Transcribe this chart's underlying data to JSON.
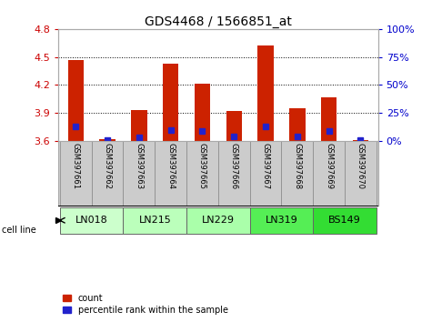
{
  "title": "GDS4468 / 1566851_at",
  "samples": [
    "GSM397661",
    "GSM397662",
    "GSM397663",
    "GSM397664",
    "GSM397665",
    "GSM397666",
    "GSM397667",
    "GSM397668",
    "GSM397669",
    "GSM397670"
  ],
  "count_values": [
    4.47,
    3.62,
    3.93,
    4.43,
    4.21,
    3.92,
    4.62,
    3.95,
    4.07,
    3.61
  ],
  "percentile_values": [
    13,
    1,
    3,
    10,
    9,
    4,
    13,
    4,
    9,
    1
  ],
  "ylim_left": [
    3.6,
    4.8
  ],
  "ylim_right": [
    0,
    100
  ],
  "yticks_left": [
    3.6,
    3.9,
    4.2,
    4.5,
    4.8
  ],
  "yticks_right": [
    0,
    25,
    50,
    75,
    100
  ],
  "bar_color": "#cc2200",
  "percentile_color": "#2222cc",
  "bg_tick_color": "#cc0000",
  "right_tick_color": "#0000cc",
  "plot_bg": "#ffffff",
  "bar_width": 0.5,
  "cell_lines": [
    {
      "name": "LN018",
      "samples": [
        0,
        1
      ],
      "color": "#ccffcc"
    },
    {
      "name": "LN215",
      "samples": [
        2,
        3
      ],
      "color": "#bbffbb"
    },
    {
      "name": "LN229",
      "samples": [
        4,
        5
      ],
      "color": "#aaffaa"
    },
    {
      "name": "LN319",
      "samples": [
        6,
        7
      ],
      "color": "#55ee55"
    },
    {
      "name": "BS149",
      "samples": [
        8,
        9
      ],
      "color": "#33dd33"
    }
  ],
  "sample_bg_color": "#cccccc",
  "sample_text_color": "#000000",
  "cell_line_label": "cell line",
  "legend_count": "count",
  "legend_pct": "percentile rank within the sample",
  "title_fontsize": 10,
  "tick_fontsize": 8,
  "sample_fontsize": 6,
  "cell_fontsize": 8,
  "legend_fontsize": 7
}
